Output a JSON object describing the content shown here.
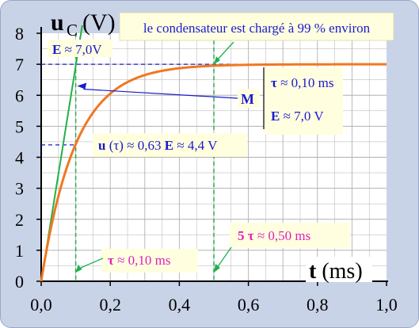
{
  "chart_data": {
    "type": "line",
    "title": "",
    "xlabel": "t (ms)",
    "ylabel_main": "u",
    "ylabel_sub": "C",
    "ylabel_unit": "(V)",
    "xlim": [
      0,
      1.0
    ],
    "ylim": [
      0,
      8
    ],
    "x_ticks": [
      "0,0",
      "0,2",
      "0,4",
      "0,6",
      "0,8",
      "1,0"
    ],
    "x_tick_values": [
      0,
      0.2,
      0.4,
      0.6,
      0.8,
      1.0
    ],
    "y_ticks": [
      "0",
      "1",
      "2",
      "3",
      "4",
      "5",
      "6",
      "7",
      "8"
    ],
    "y_tick_values": [
      0,
      1,
      2,
      3,
      4,
      5,
      6,
      7,
      8
    ],
    "grid": true,
    "series": [
      {
        "kind": "exponential-charge",
        "formula": "u = E (1 - exp(-t / tau))",
        "E": 7.0,
        "tau": 0.1,
        "color": "#f07820"
      },
      {
        "kind": "tangent-at-origin",
        "points": [
          [
            0,
            0
          ],
          [
            0.12,
            8.4
          ]
        ],
        "color": "#22b04a"
      }
    ],
    "reference_lines": [
      {
        "orientation": "horizontal",
        "y": 7.0,
        "color": "#1a1ad0"
      },
      {
        "orientation": "horizontal",
        "y": 4.4,
        "x_to": 0.1,
        "color": "#1a1ad0"
      },
      {
        "orientation": "vertical",
        "x": 0.1,
        "color": "#22b04a"
      },
      {
        "orientation": "vertical",
        "x": 0.5,
        "color": "#22b04a"
      }
    ],
    "annotations": {
      "top_note": "le condensateur est chargé à 99 % environ",
      "e_label_bold": "E",
      "e_label_rest": " ≈ 7,0V",
      "m_label": "M",
      "m_box_tau_sym": "τ",
      "m_box_tau_rest": " ≈ 0,10 ms",
      "m_box_e_sym": "E",
      "m_box_e_rest": " ≈ 7,0 V",
      "u_tau_u": "u",
      "u_tau_paren": " (τ)",
      "u_tau_mid": " ≈ 0,63 ",
      "u_tau_e": "E",
      "u_tau_end": " ≈ 4,4 V",
      "five_tau_bold": "5 τ",
      "five_tau_rest": " ≈ 0,50 ms",
      "tau_bottom_sym": "τ",
      "tau_bottom_rest": " ≈ 0,10 ms"
    },
    "colors": {
      "frame_bg": "#c9d3e8",
      "plot_bg": "#ffffff",
      "label_box": "#ffffe0",
      "label_blue": "#1a1ad0",
      "label_magenta": "#e020c0",
      "axis": "#000000",
      "grid": "#b0b0b0"
    }
  }
}
